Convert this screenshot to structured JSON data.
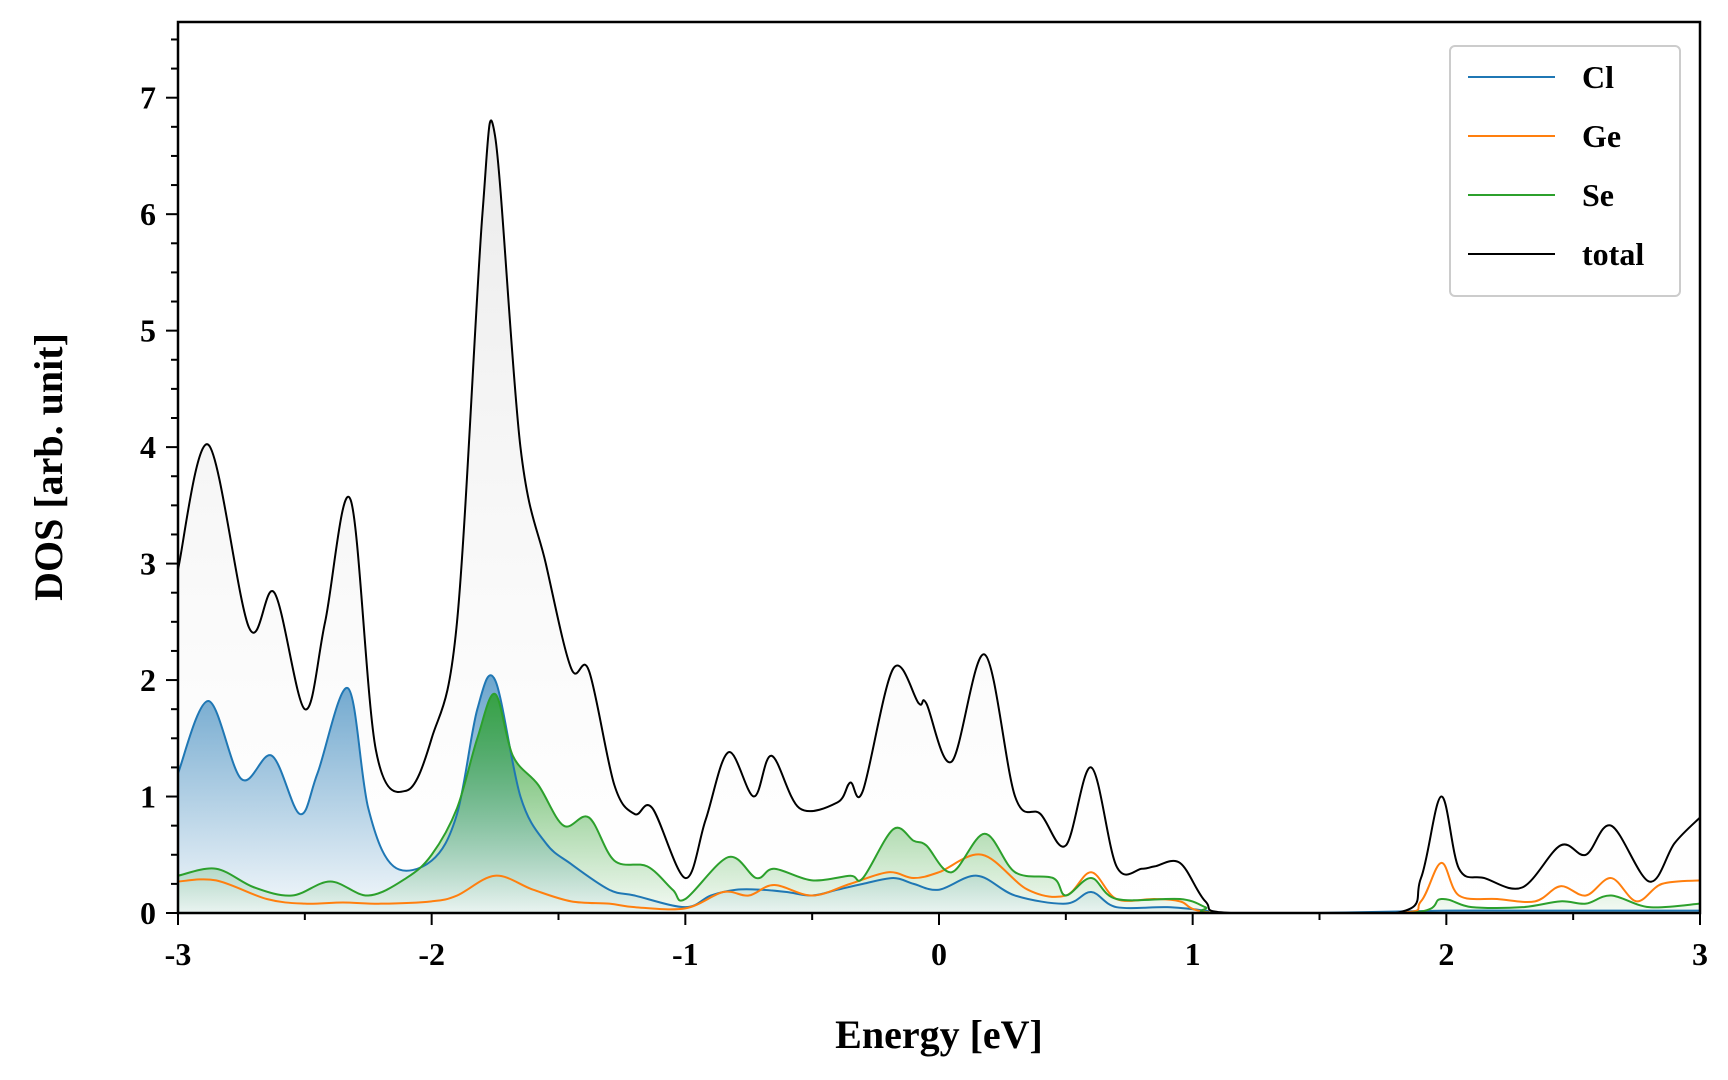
{
  "chart_data": {
    "type": "line",
    "title": "",
    "xlabel": "Energy [eV]",
    "ylabel": "DOS [arb. unit]",
    "xlim": [
      -3,
      3
    ],
    "ylim": [
      0,
      7.65
    ],
    "xticks": [
      -3,
      -2,
      -1,
      0,
      1,
      2,
      3
    ],
    "xtick_labels": [
      "-3",
      "-2",
      "-1",
      "0",
      "1",
      "2",
      "3"
    ],
    "yticks": [
      0,
      1,
      2,
      3,
      4,
      5,
      6,
      7
    ],
    "ytick_labels": [
      "0",
      "1",
      "2",
      "3",
      "4",
      "5",
      "6",
      "7"
    ],
    "grid": false,
    "legend_position": "top-right",
    "fill_under_curves": true,
    "series": [
      {
        "name": "Cl",
        "color": "#1f77b4",
        "x": [
          -3.0,
          -2.88,
          -2.75,
          -2.63,
          -2.52,
          -2.45,
          -2.33,
          -2.25,
          -2.15,
          -2.0,
          -1.9,
          -1.82,
          -1.75,
          -1.65,
          -1.55,
          -1.45,
          -1.3,
          -1.2,
          -1.0,
          -0.9,
          -0.8,
          -0.7,
          -0.6,
          -0.5,
          -0.4,
          -0.3,
          -0.18,
          -0.1,
          0.0,
          0.15,
          0.3,
          0.5,
          0.6,
          0.7,
          0.9,
          1.05,
          1.1,
          1.5,
          2.0,
          2.5,
          3.0
        ],
        "y": [
          1.2,
          1.82,
          1.15,
          1.35,
          0.85,
          1.2,
          1.93,
          0.9,
          0.4,
          0.45,
          0.85,
          1.75,
          2.0,
          1.0,
          0.6,
          0.42,
          0.2,
          0.15,
          0.05,
          0.15,
          0.2,
          0.2,
          0.18,
          0.15,
          0.2,
          0.25,
          0.3,
          0.25,
          0.2,
          0.32,
          0.15,
          0.08,
          0.18,
          0.05,
          0.05,
          0.02,
          0.0,
          0.0,
          0.02,
          0.02,
          0.02
        ]
      },
      {
        "name": "Ge",
        "color": "#ff7f0e",
        "x": [
          -3.0,
          -2.85,
          -2.65,
          -2.5,
          -2.35,
          -2.2,
          -2.0,
          -1.9,
          -1.75,
          -1.6,
          -1.45,
          -1.3,
          -1.2,
          -1.0,
          -0.85,
          -0.75,
          -0.65,
          -0.5,
          -0.35,
          -0.2,
          -0.1,
          0.0,
          0.17,
          0.35,
          0.5,
          0.6,
          0.7,
          0.85,
          0.95,
          1.1,
          1.8,
          1.9,
          1.98,
          2.05,
          2.2,
          2.35,
          2.45,
          2.55,
          2.65,
          2.75,
          2.85,
          3.0
        ],
        "y": [
          0.27,
          0.28,
          0.12,
          0.08,
          0.09,
          0.08,
          0.1,
          0.15,
          0.32,
          0.2,
          0.1,
          0.08,
          0.05,
          0.04,
          0.18,
          0.15,
          0.24,
          0.15,
          0.25,
          0.35,
          0.3,
          0.35,
          0.5,
          0.2,
          0.15,
          0.35,
          0.12,
          0.12,
          0.1,
          0.0,
          0.0,
          0.1,
          0.43,
          0.15,
          0.12,
          0.1,
          0.23,
          0.15,
          0.3,
          0.1,
          0.25,
          0.28
        ]
      },
      {
        "name": "Se",
        "color": "#2ca02c",
        "x": [
          -3.0,
          -2.85,
          -2.7,
          -2.55,
          -2.4,
          -2.25,
          -2.1,
          -2.0,
          -1.9,
          -1.82,
          -1.75,
          -1.68,
          -1.58,
          -1.48,
          -1.38,
          -1.28,
          -1.15,
          -1.05,
          -1.0,
          -0.83,
          -0.72,
          -0.65,
          -0.5,
          -0.35,
          -0.3,
          -0.18,
          -0.1,
          -0.05,
          0.05,
          0.18,
          0.3,
          0.45,
          0.5,
          0.6,
          0.7,
          0.95,
          1.05,
          1.1,
          1.85,
          1.98,
          2.1,
          2.3,
          2.45,
          2.55,
          2.65,
          2.8,
          3.0
        ],
        "y": [
          0.32,
          0.38,
          0.22,
          0.15,
          0.27,
          0.15,
          0.3,
          0.5,
          0.9,
          1.5,
          1.88,
          1.35,
          1.1,
          0.75,
          0.82,
          0.45,
          0.4,
          0.2,
          0.12,
          0.48,
          0.3,
          0.38,
          0.28,
          0.32,
          0.3,
          0.72,
          0.62,
          0.58,
          0.35,
          0.68,
          0.35,
          0.3,
          0.15,
          0.3,
          0.12,
          0.12,
          0.05,
          0.0,
          0.0,
          0.12,
          0.05,
          0.05,
          0.1,
          0.08,
          0.15,
          0.05,
          0.08
        ]
      },
      {
        "name": "total",
        "color": "#000000",
        "x": [
          -3.0,
          -2.88,
          -2.72,
          -2.62,
          -2.5,
          -2.42,
          -2.32,
          -2.22,
          -2.1,
          -2.0,
          -1.9,
          -1.8,
          -1.75,
          -1.65,
          -1.55,
          -1.45,
          -1.38,
          -1.28,
          -1.2,
          -1.13,
          -1.0,
          -0.92,
          -0.83,
          -0.73,
          -0.66,
          -0.55,
          -0.4,
          -0.35,
          -0.3,
          -0.18,
          -0.08,
          -0.05,
          0.05,
          0.18,
          0.3,
          0.4,
          0.5,
          0.6,
          0.7,
          0.8,
          0.85,
          0.95,
          1.05,
          1.15,
          1.8,
          1.9,
          1.98,
          2.05,
          2.15,
          2.3,
          2.45,
          2.55,
          2.65,
          2.8,
          2.9,
          3.0
        ],
        "y": [
          2.95,
          4.02,
          2.45,
          2.75,
          1.75,
          2.5,
          3.55,
          1.4,
          1.05,
          1.5,
          2.5,
          6.0,
          6.67,
          4.0,
          3.0,
          2.1,
          2.08,
          1.1,
          0.85,
          0.9,
          0.3,
          0.8,
          1.38,
          1.0,
          1.35,
          0.9,
          0.95,
          1.12,
          1.05,
          2.1,
          1.8,
          1.8,
          1.3,
          2.22,
          1.0,
          0.85,
          0.58,
          1.25,
          0.4,
          0.38,
          0.4,
          0.43,
          0.1,
          0.0,
          0.0,
          0.3,
          1.0,
          0.38,
          0.3,
          0.22,
          0.58,
          0.5,
          0.75,
          0.27,
          0.6,
          0.82
        ]
      }
    ]
  }
}
